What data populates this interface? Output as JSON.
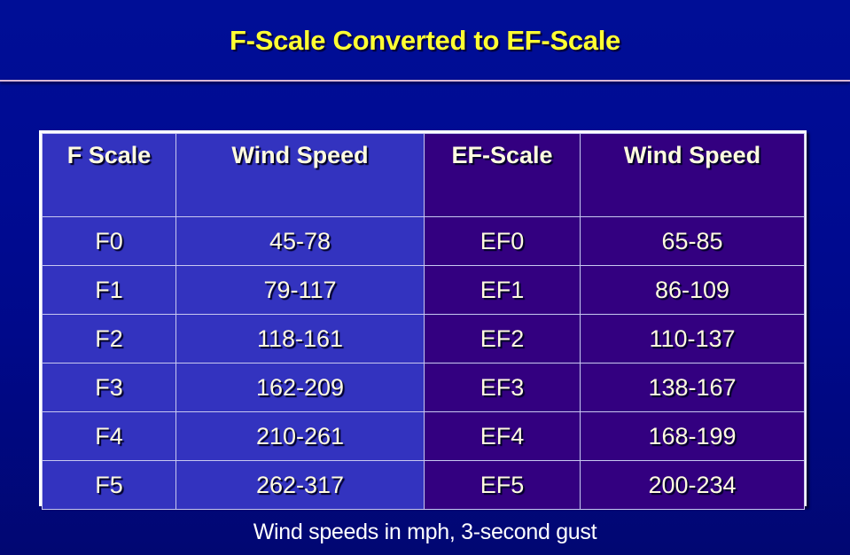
{
  "slide": {
    "title": "F-Scale Converted to EF-Scale",
    "footnote": "Wind speeds in mph, 3-second gust",
    "colors": {
      "title": "#ffff33",
      "f_columns_bg": "#3333bf",
      "ef_columns_bg": "#330080",
      "background": "#000e96",
      "text": "#fffbe0"
    }
  },
  "table": {
    "headers": [
      "F Scale",
      "Wind Speed",
      "EF-Scale",
      "Wind Speed"
    ],
    "rows": [
      {
        "f": "F0",
        "f_speed": "45-78",
        "ef": "EF0",
        "ef_speed": "65-85"
      },
      {
        "f": "F1",
        "f_speed": "79-117",
        "ef": "EF1",
        "ef_speed": "86-109"
      },
      {
        "f": "F2",
        "f_speed": "118-161",
        "ef": "EF2",
        "ef_speed": "110-137"
      },
      {
        "f": "F3",
        "f_speed": "162-209",
        "ef": "EF3",
        "ef_speed": "138-167"
      },
      {
        "f": "F4",
        "f_speed": "210-261",
        "ef": "EF4",
        "ef_speed": "168-199"
      },
      {
        "f": "F5",
        "f_speed": "262-317",
        "ef": "EF5",
        "ef_speed": "200-234"
      }
    ]
  }
}
